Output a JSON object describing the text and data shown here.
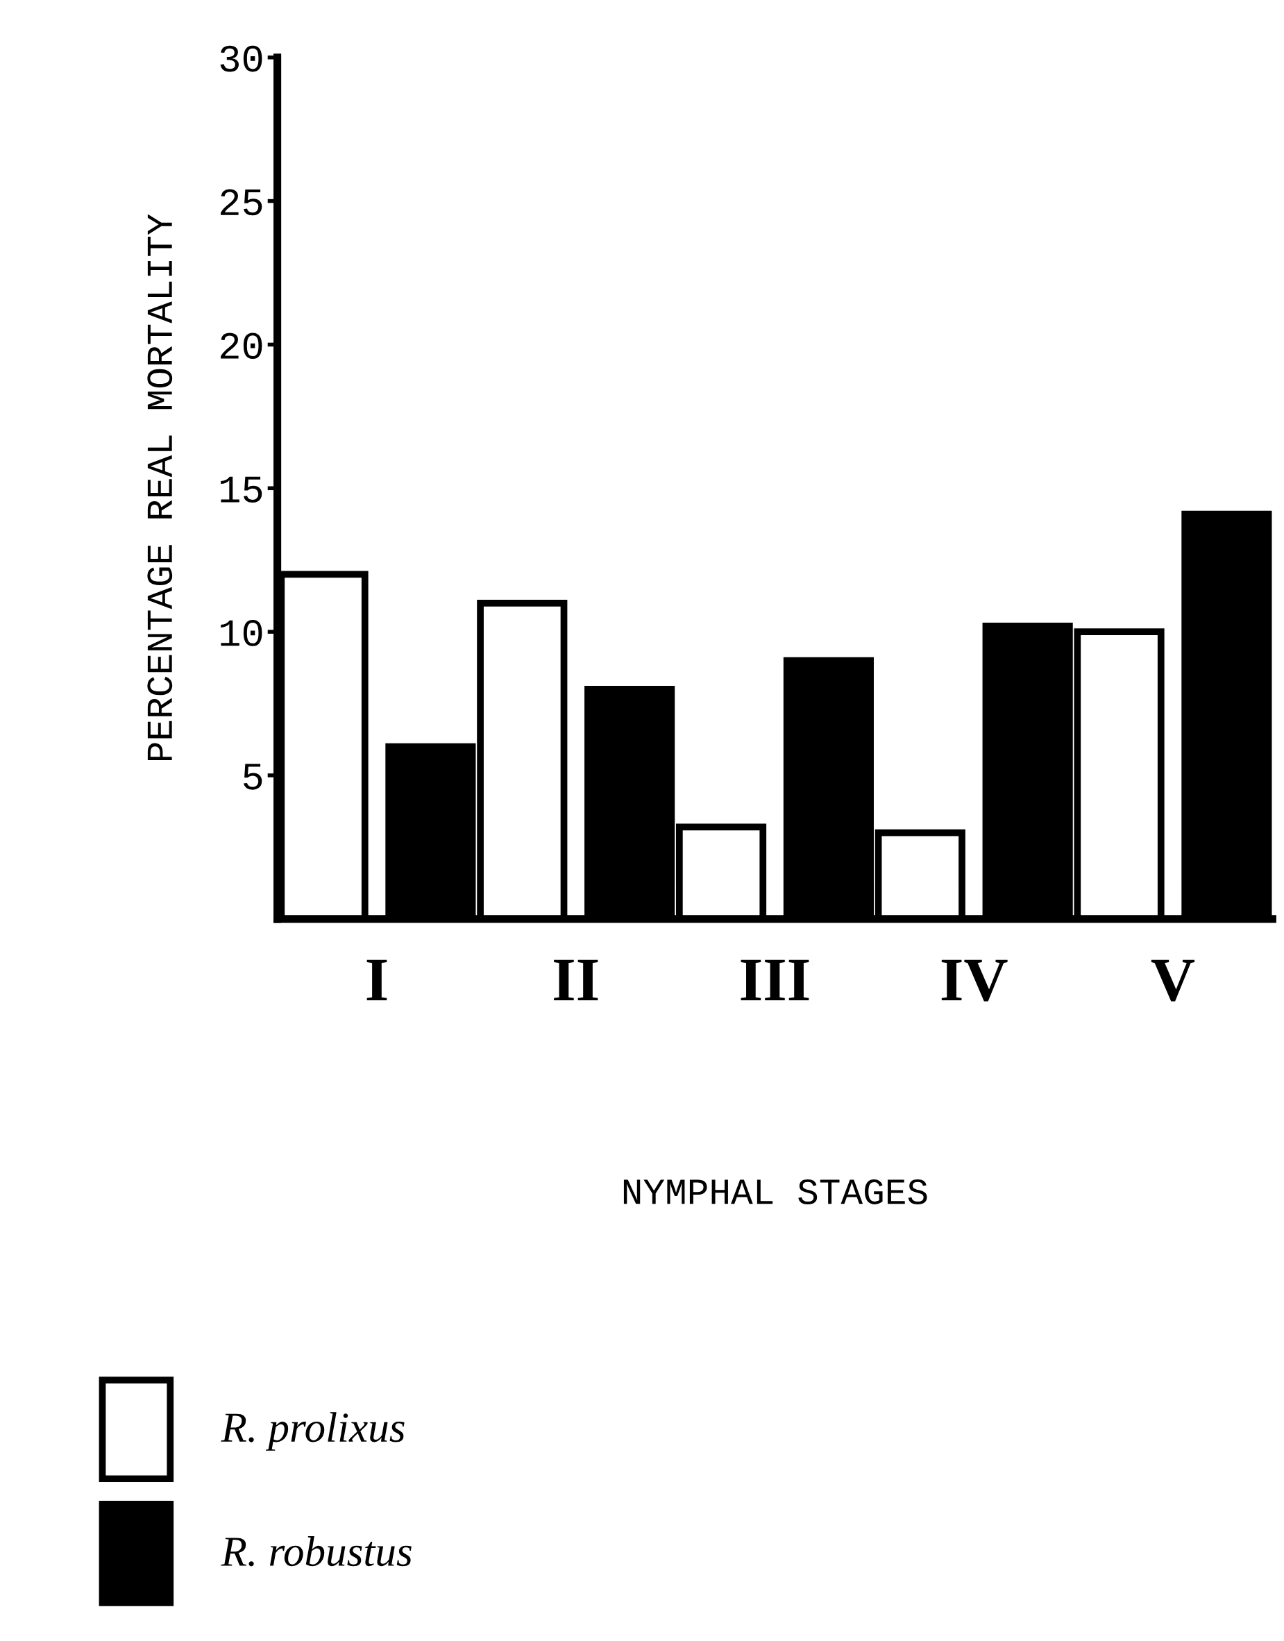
{
  "chart_data": {
    "type": "bar",
    "xlabel": "NYMPHAL STAGES",
    "ylabel": "PERCENTAGE REAL MORTALITY",
    "categories": [
      "I",
      "II",
      "III",
      "IV",
      "V"
    ],
    "series": [
      {
        "name": "R. prolixus",
        "color": "#ffffff",
        "values": [
          12,
          11,
          3.2,
          3,
          10
        ]
      },
      {
        "name": "R. robustus",
        "color": "#000000",
        "values": [
          6,
          8,
          9,
          10.2,
          14.1
        ]
      }
    ],
    "ylim": [
      0,
      30
    ],
    "yticks": [
      5,
      10,
      15,
      20,
      25,
      30
    ],
    "grid": false,
    "legend": "bottom left"
  }
}
